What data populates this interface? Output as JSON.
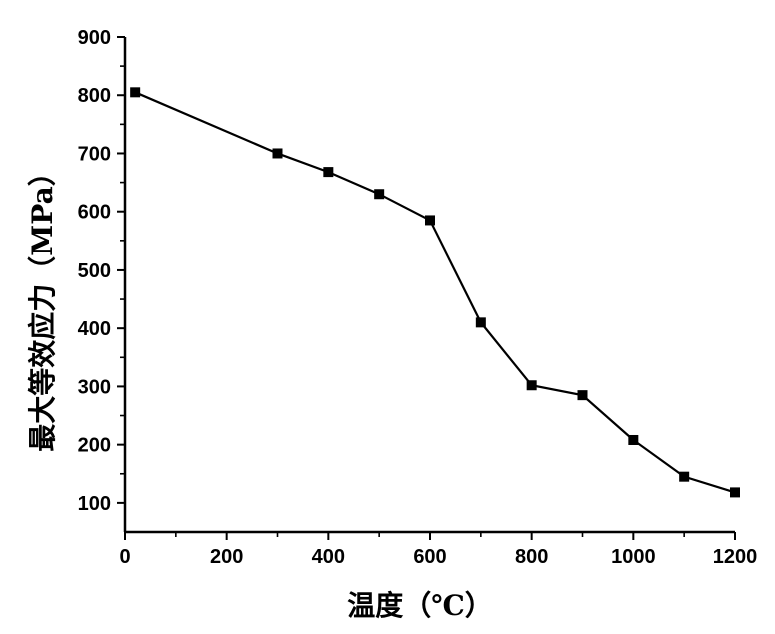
{
  "chart_data": {
    "type": "line",
    "title": "",
    "xlabel": "温度（℃）",
    "ylabel": "最大等效应力（MPa）",
    "xlim": [
      0,
      1200
    ],
    "ylim": [
      50,
      900
    ],
    "x_ticks": [
      0,
      200,
      400,
      600,
      800,
      1000,
      1200
    ],
    "y_ticks": [
      100,
      200,
      300,
      400,
      500,
      600,
      700,
      800,
      900
    ],
    "grid": false,
    "legend": "none",
    "series": [
      {
        "color": "#000000",
        "marker": "square",
        "x": [
          20,
          300,
          400,
          500,
          600,
          700,
          800,
          900,
          1000,
          1100,
          1200
        ],
        "y": [
          805,
          700,
          668,
          630,
          585,
          410,
          302,
          285,
          208,
          145,
          118
        ]
      }
    ]
  }
}
